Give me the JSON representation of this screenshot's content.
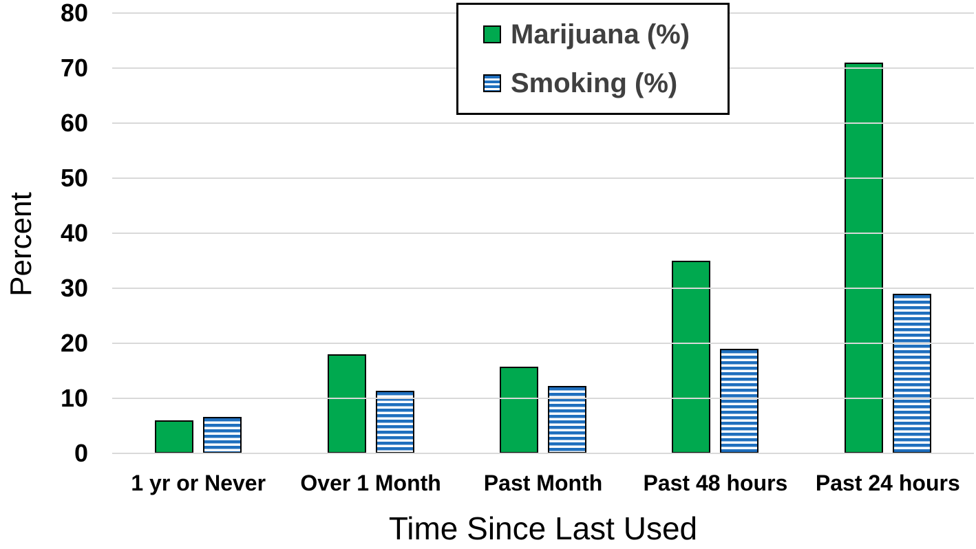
{
  "chart_data": {
    "type": "bar",
    "title": "",
    "xlabel": "Time Since Last Used",
    "ylabel": "Percent",
    "categories": [
      "1 yr or Never",
      "Over 1 Month",
      "Past Month",
      "Past 48 hours",
      "Past 24 hours"
    ],
    "series": [
      {
        "name": "Marijuana (%)",
        "color": "#00A94F",
        "pattern": "solid",
        "values": [
          6,
          18,
          15.7,
          35,
          71
        ]
      },
      {
        "name": "Smoking (%)",
        "color": "#1F6FBE",
        "pattern": "horizontal-stripes",
        "values": [
          6.6,
          11.4,
          12.2,
          19,
          29
        ]
      }
    ],
    "ylim": [
      0,
      80
    ],
    "yticks": [
      0,
      10,
      20,
      30,
      40,
      50,
      60,
      70,
      80
    ],
    "grid": "horizontal",
    "gridline_color": "#D9D9D9",
    "legend_position": "top-center",
    "bar_outline_color": "#000000",
    "axis_text_color": "#000000",
    "legend_text_color": "#404040"
  }
}
